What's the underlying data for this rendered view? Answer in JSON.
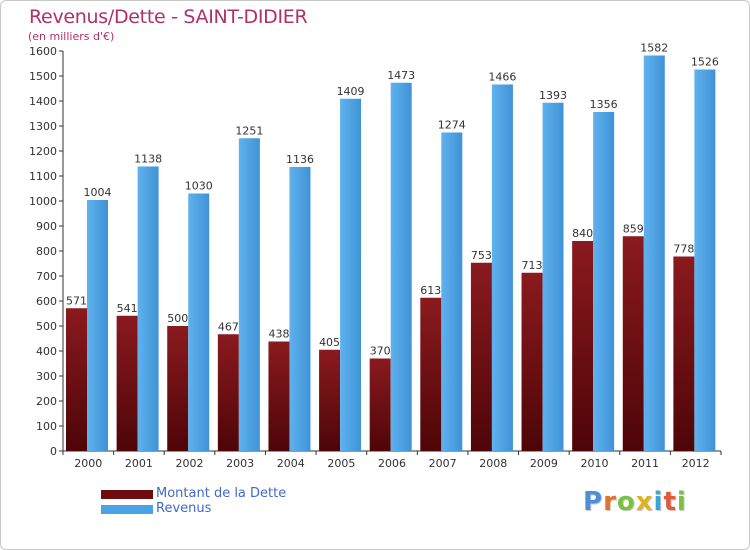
{
  "header": {
    "title": "Revenus/Dette - SAINT-DIDIER",
    "subtitle": "(en milliers d'€)"
  },
  "chart_data": {
    "type": "bar",
    "categories": [
      "2000",
      "2001",
      "2002",
      "2003",
      "2004",
      "2005",
      "2006",
      "2007",
      "2008",
      "2009",
      "2010",
      "2011",
      "2012"
    ],
    "series": [
      {
        "name": "Montant de la Dette",
        "values": [
          571,
          541,
          500,
          467,
          438,
          405,
          370,
          613,
          753,
          713,
          840,
          859,
          778
        ],
        "color": "#7a1418"
      },
      {
        "name": "Revenus",
        "values": [
          1004,
          1138,
          1030,
          1251,
          1136,
          1409,
          1473,
          1274,
          1466,
          1393,
          1356,
          1582,
          1526
        ],
        "color": "#4aa3e6"
      }
    ],
    "ylim": [
      0,
      1600
    ],
    "yticks": [
      0,
      100,
      200,
      300,
      400,
      500,
      600,
      700,
      800,
      900,
      1000,
      1100,
      1200,
      1300,
      1400,
      1500,
      1600
    ],
    "grid": false,
    "legend": "bottom-left"
  },
  "brand": {
    "letters": [
      "P",
      "r",
      "o",
      "x",
      "i",
      "t",
      "i"
    ],
    "colors": [
      "#4a8fd8",
      "#e0732a",
      "#7ac143",
      "#e2b21c",
      "#3aa6d8",
      "#e05a3a",
      "#7ac143"
    ]
  }
}
